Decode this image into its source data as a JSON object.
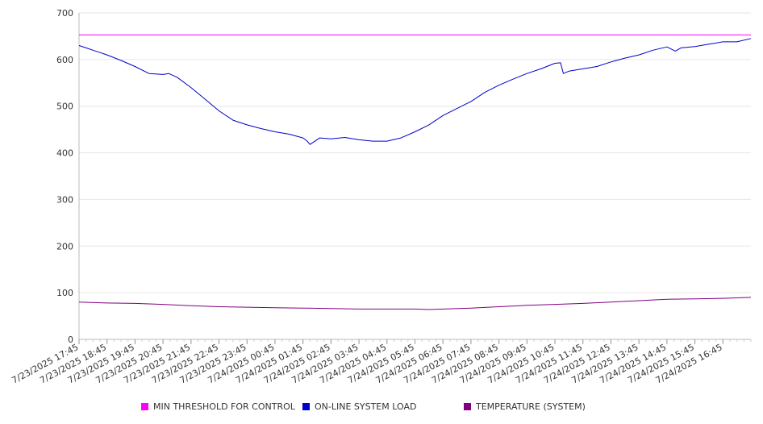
{
  "chart_data": {
    "type": "line",
    "title": "",
    "xlabel": "",
    "ylabel": "",
    "ylim": [
      0,
      700
    ],
    "yticks": [
      0,
      100,
      200,
      300,
      400,
      500,
      600,
      700
    ],
    "x_tick_labels": [
      "7/23/2025 17:45",
      "7/23/2025 18:45",
      "7/23/2025 19:45",
      "7/23/2025 20:45",
      "7/23/2025 21:45",
      "7/23/2025 22:45",
      "7/23/2025 23:45",
      "7/24/2025 00:45",
      "7/24/2025 01:45",
      "7/24/2025 02:45",
      "7/24/2025 03:45",
      "7/24/2025 04:45",
      "7/24/2025 05:45",
      "7/24/2025 06:45",
      "7/24/2025 07:45",
      "7/24/2025 08:45",
      "7/24/2025 09:45",
      "7/24/2025 10:45",
      "7/24/2025 11:45",
      "7/24/2025 12:45",
      "7/24/2025 13:45",
      "7/24/2025 14:45",
      "7/24/2025 15:45",
      "7/24/2025 16:45"
    ],
    "x_range_hours": [
      0,
      24
    ],
    "grid": "horizontal",
    "legend_position": "bottom",
    "series": [
      {
        "name": "MIN THRESHOLD FOR CONTROL",
        "color": "#ff00ff",
        "x_hours": [
          0,
          24
        ],
        "values": [
          653,
          653
        ]
      },
      {
        "name": "ON-LINE SYSTEM LOAD",
        "color": "#0000cc",
        "x_hours": [
          0,
          0.25,
          0.5,
          1.0,
          1.5,
          2.0,
          2.5,
          3.0,
          3.2,
          3.5,
          4.0,
          4.5,
          5.0,
          5.5,
          6.0,
          6.5,
          7.0,
          7.5,
          8.0,
          8.15,
          8.25,
          8.6,
          9.0,
          9.5,
          10.0,
          10.5,
          11.0,
          11.5,
          12.0,
          12.5,
          13.0,
          13.5,
          14.0,
          14.5,
          15.0,
          15.5,
          16.0,
          16.5,
          17.0,
          17.2,
          17.3,
          17.5,
          18.0,
          18.5,
          19.0,
          19.5,
          20.0,
          20.5,
          21.0,
          21.3,
          21.5,
          22.0,
          22.5,
          23.0,
          23.5,
          24.0
        ],
        "values": [
          630,
          625,
          620,
          610,
          598,
          585,
          570,
          568,
          570,
          562,
          540,
          515,
          490,
          470,
          460,
          452,
          445,
          440,
          432,
          425,
          418,
          432,
          430,
          433,
          428,
          425,
          425,
          432,
          445,
          460,
          480,
          495,
          510,
          530,
          545,
          558,
          570,
          580,
          592,
          593,
          570,
          575,
          580,
          585,
          595,
          603,
          610,
          620,
          627,
          618,
          625,
          628,
          633,
          638,
          638,
          645
        ]
      },
      {
        "name": "TEMPERATURE (SYSTEM)",
        "color": "#800080",
        "x_hours": [
          0,
          1,
          2,
          3,
          4,
          5,
          6,
          7,
          8,
          9,
          10,
          11,
          12,
          12.5,
          13,
          14,
          15,
          16,
          17,
          18,
          19,
          20,
          21,
          22,
          23,
          24
        ],
        "values": [
          80,
          78,
          77,
          75,
          72,
          70,
          69,
          68,
          67,
          66,
          65,
          65,
          65,
          64,
          65,
          67,
          70,
          73,
          75,
          77,
          80,
          83,
          86,
          87,
          88,
          90
        ]
      }
    ]
  }
}
